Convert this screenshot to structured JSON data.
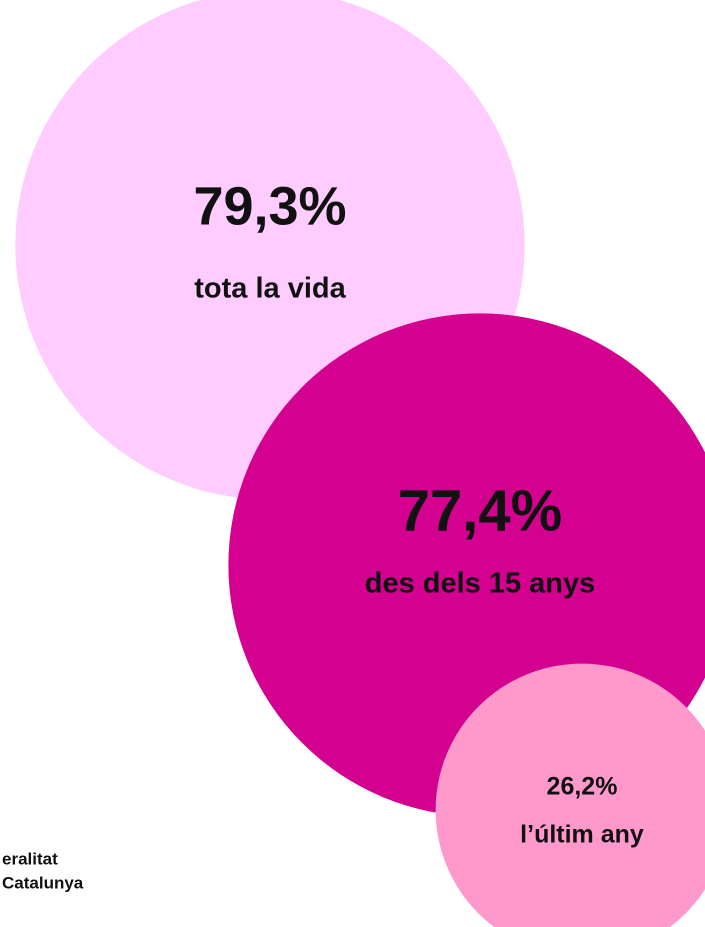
{
  "chart_data": {
    "type": "bubble",
    "categories": [
      "tota la vida",
      "des dels 15 anys",
      "l’últim any"
    ],
    "values": [
      79.3,
      77.4,
      26.2
    ],
    "value_labels": [
      "79,3%",
      "77,4%",
      "26,2%"
    ],
    "colors": [
      "#ffccff",
      "#d4008f",
      "#ff99cc"
    ]
  },
  "logo": {
    "lines": [
      "eralitat",
      "Catalunya"
    ]
  }
}
